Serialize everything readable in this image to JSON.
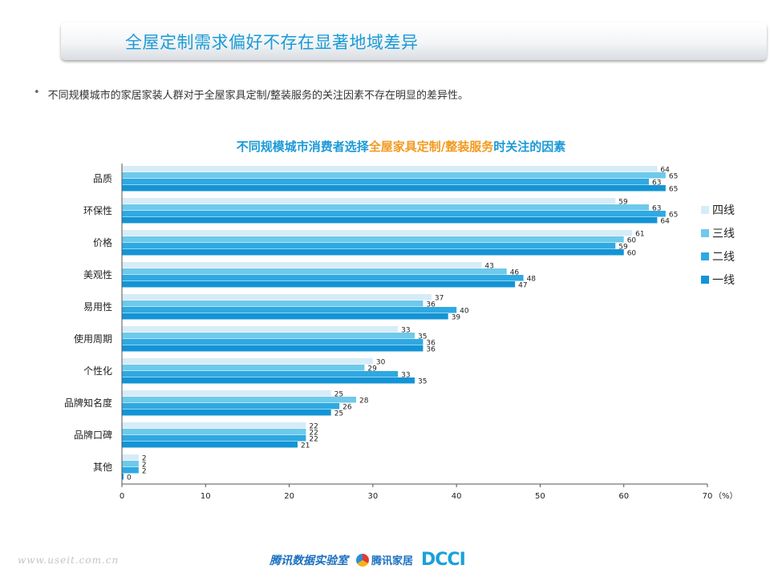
{
  "header": {
    "title": "全屋定制需求偏好不存在显著地域差异"
  },
  "bullet": {
    "text": "不同规模城市的家居家装人群对于全屋家具定制/整装服务的关注因素不存在明显的差异性。"
  },
  "chart_title": {
    "part1": "不同规模城市消费者选择",
    "highlight": "全屋家具定制/整装服务",
    "part2": "时关注的因素"
  },
  "footer": {
    "url": "www.useit.com.cn",
    "logo1": "腾讯数据实验室",
    "logo2": "腾讯家居",
    "logo3": "DCCI"
  },
  "colors": {
    "四线": "#d6ecf8",
    "三线": "#6ec9ea",
    "二线": "#2ea9e2",
    "一线": "#1494d5",
    "accent": "#1a9ad6",
    "highlight": "#f29a1f"
  },
  "chart_data": {
    "type": "bar",
    "orientation": "horizontal",
    "categories": [
      "品质",
      "环保性",
      "价格",
      "美观性",
      "易用性",
      "使用周期",
      "个性化",
      "品牌知名度",
      "品牌口碑",
      "其他"
    ],
    "series": [
      {
        "name": "四线",
        "values": [
          64,
          59,
          61,
          43,
          37,
          33,
          30,
          25,
          22,
          2
        ]
      },
      {
        "name": "三线",
        "values": [
          65,
          63,
          60,
          46,
          36,
          35,
          29,
          28,
          22,
          2
        ]
      },
      {
        "name": "二线",
        "values": [
          63,
          65,
          59,
          48,
          40,
          36,
          33,
          26,
          22,
          2
        ]
      },
      {
        "name": "一线",
        "values": [
          65,
          64,
          60,
          47,
          39,
          36,
          35,
          25,
          21,
          0
        ]
      }
    ],
    "xlim": [
      0,
      70
    ],
    "xticks": [
      0,
      10,
      20,
      30,
      40,
      50,
      60,
      70
    ],
    "unit": "（%）",
    "legend_position": "right",
    "grid": false
  }
}
